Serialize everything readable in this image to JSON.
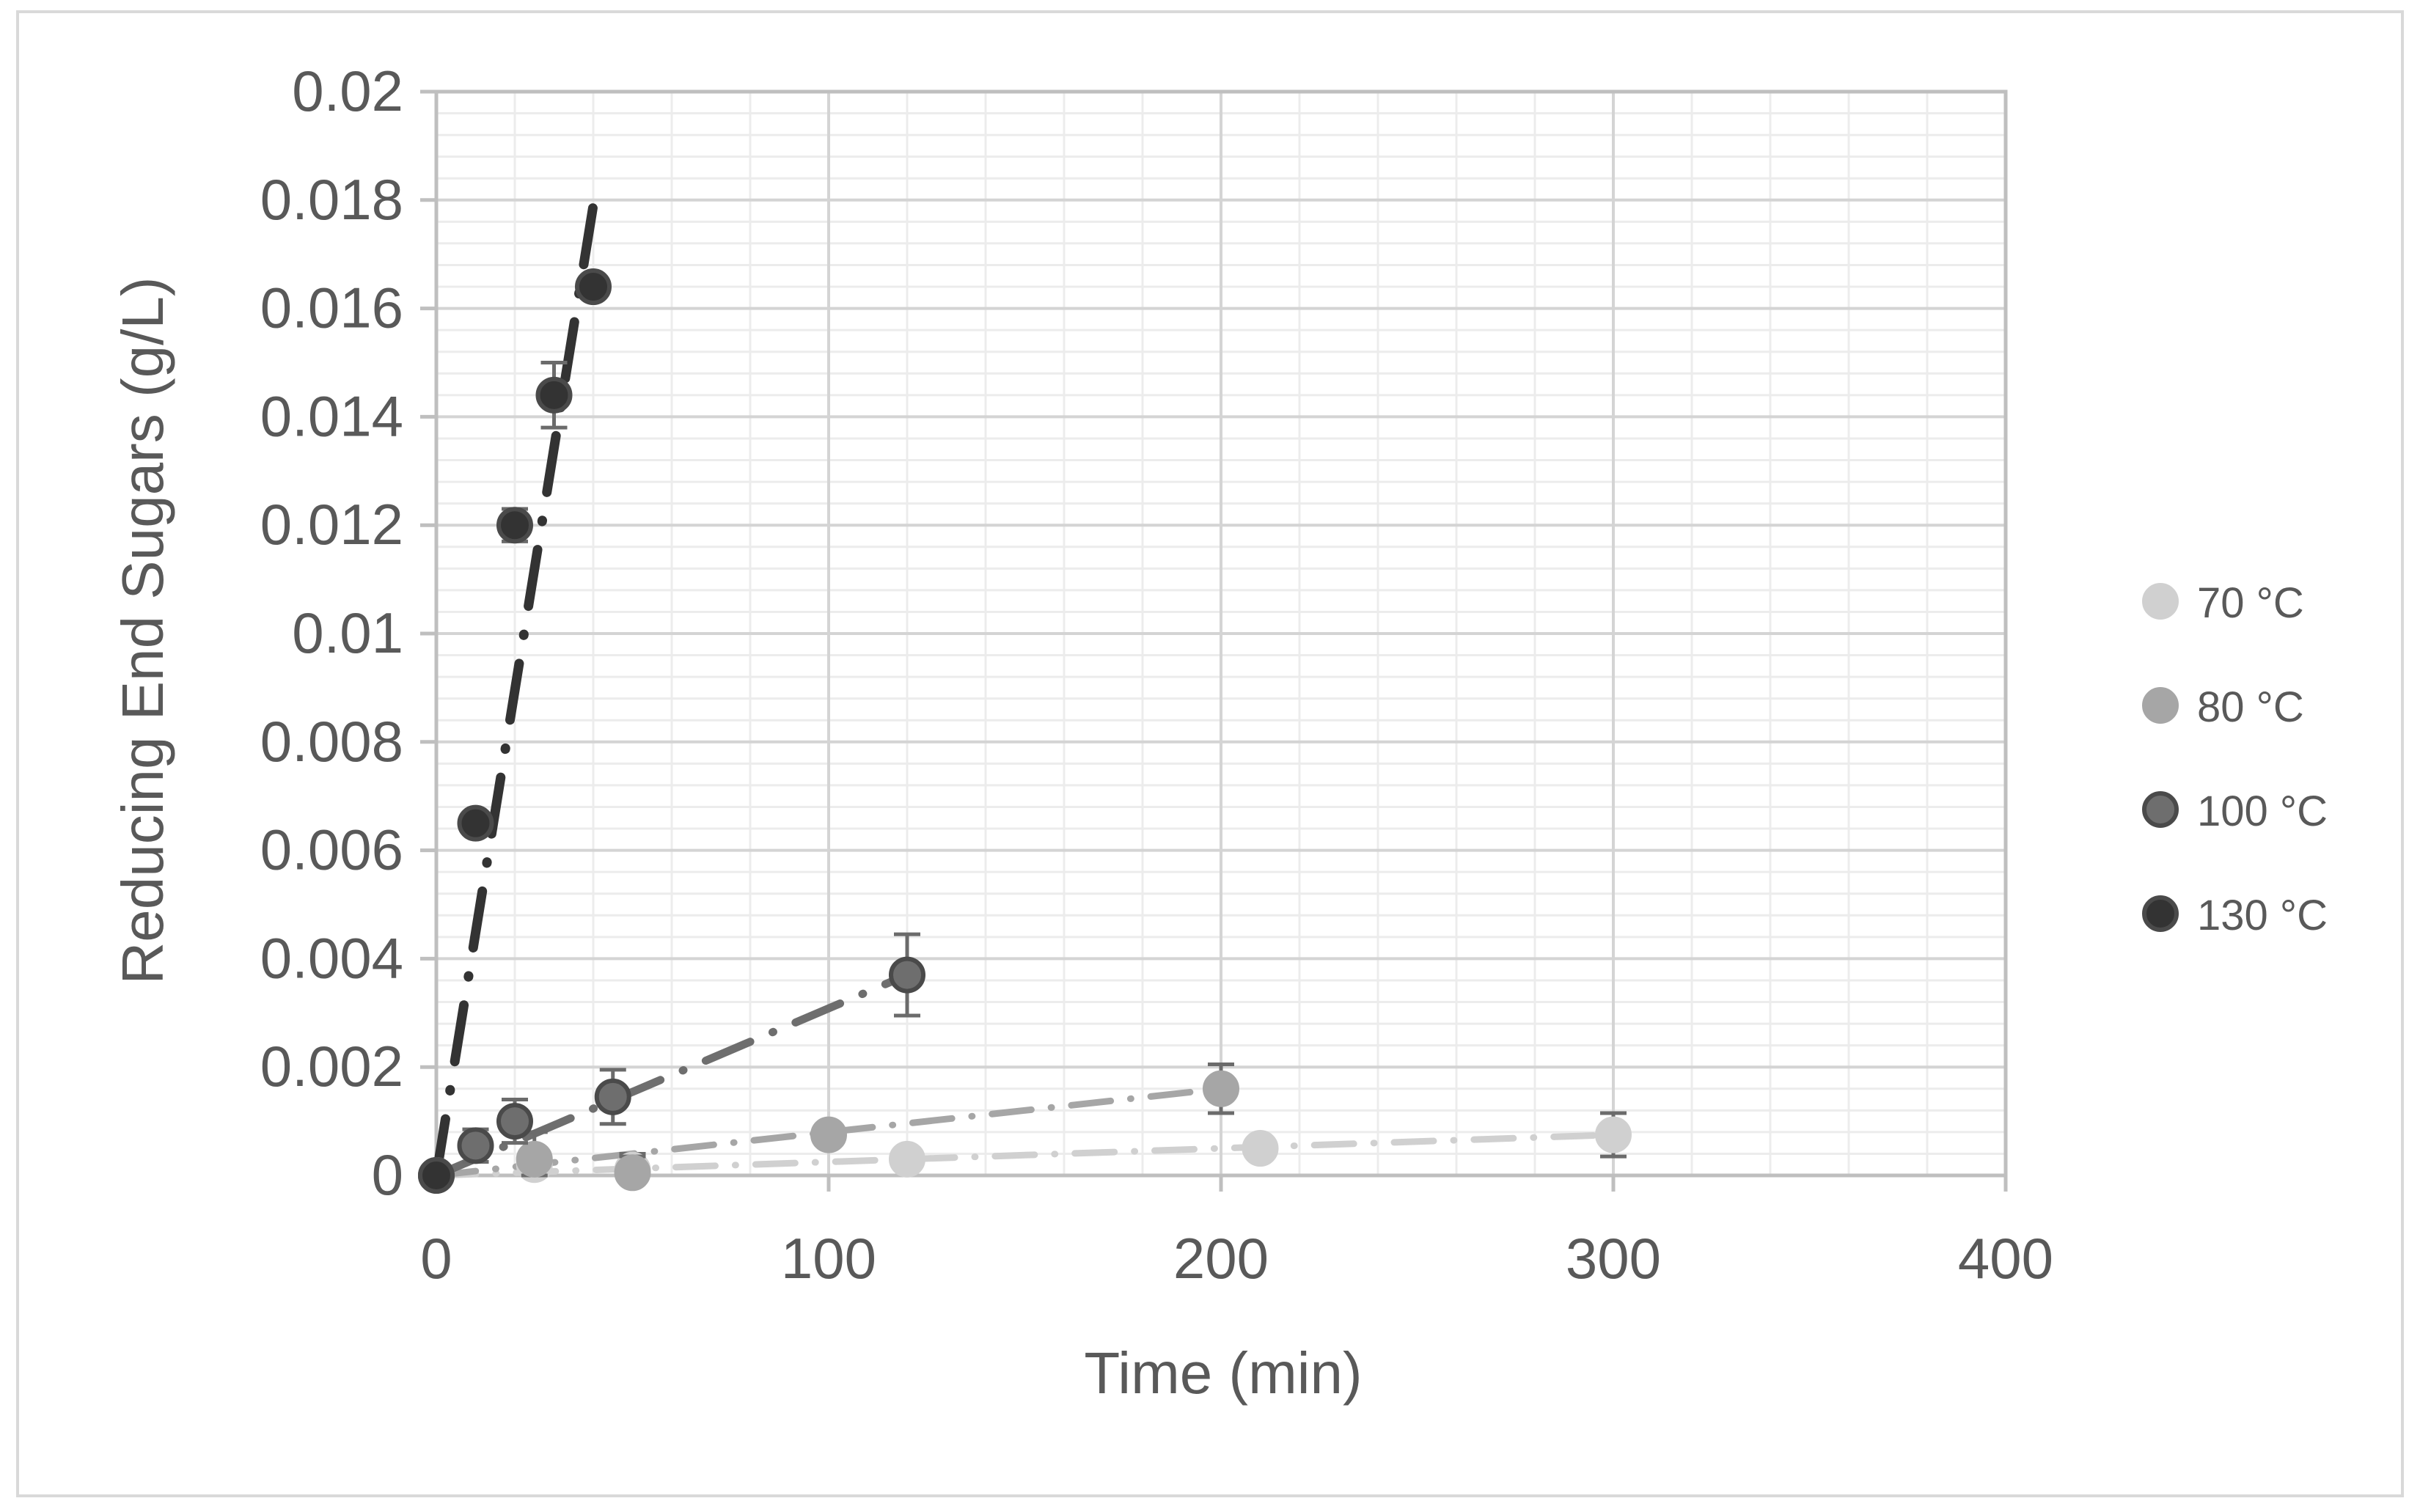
{
  "chart_data": {
    "type": "scatter",
    "xlabel": "Time (min)",
    "ylabel": "Reducing End Sugars  (g/L)",
    "xlim": [
      0,
      400
    ],
    "ylim": [
      0,
      0.02
    ],
    "x_ticks": [
      "0",
      "100",
      "200",
      "300",
      "400"
    ],
    "y_ticks": [
      "0",
      "0.002",
      "0.004",
      "0.006",
      "0.008",
      "0.01",
      "0.012",
      "0.014",
      "0.016",
      "0.018",
      "0.02"
    ],
    "grid": true,
    "legend_position": "right",
    "series": [
      {
        "name": "70 °C",
        "color": "#d0d0d0",
        "x": [
          0,
          25,
          50,
          120,
          210,
          300
        ],
        "y": [
          0,
          0.0002,
          0.0001,
          0.0003,
          0.0005,
          0.00075
        ],
        "err": [
          0,
          0.0003,
          0.0003,
          0.0002,
          0.0002,
          0.0004
        ],
        "trend_end": [
          300,
          0.00075
        ]
      },
      {
        "name": "80 °C",
        "color": "#a6a6a6",
        "x": [
          0,
          25,
          50,
          100,
          200
        ],
        "y": [
          0,
          0.0003,
          5e-05,
          0.00075,
          0.0016
        ],
        "err": [
          0,
          0.0005,
          0.0003,
          0.0002,
          0.00045
        ],
        "trend_end": [
          200,
          0.0016
        ]
      },
      {
        "name": "100 °C",
        "color": "#6e6e6e",
        "x": [
          0,
          10,
          20,
          45,
          120
        ],
        "y": [
          0,
          0.00055,
          0.001,
          0.00145,
          0.0037
        ],
        "err": [
          0,
          0.0003,
          0.0004,
          0.0005,
          0.00075
        ],
        "trend_end": [
          120,
          0.0037
        ]
      },
      {
        "name": "130 °C",
        "color": "#333333",
        "x": [
          0,
          10,
          20,
          30,
          40
        ],
        "y": [
          0,
          0.0065,
          0.012,
          0.0144,
          0.0164
        ],
        "err": [
          0,
          0.0002,
          0.0003,
          0.0006,
          0.0002
        ],
        "trend_end": [
          40,
          0.0179
        ]
      }
    ]
  }
}
